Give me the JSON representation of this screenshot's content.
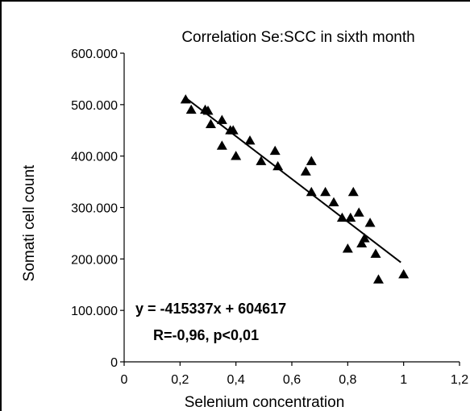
{
  "chart_data": {
    "type": "scatter",
    "title": "Correlation Se:SCC in sixth month",
    "xlabel": "Selenium concentration",
    "ylabel": "Somati cell count",
    "xlim": [
      0,
      1.2
    ],
    "ylim": [
      0,
      600000
    ],
    "x_ticks": [
      "0",
      "0,2",
      "0,4",
      "0,6",
      "0,8",
      "1",
      "1,2"
    ],
    "y_ticks": [
      "0",
      "100.000",
      "200.000",
      "300.000",
      "400.000",
      "500.000",
      "600.000"
    ],
    "marker": "triangle",
    "grid": false,
    "legend": "none",
    "points": [
      [
        0.22,
        510000
      ],
      [
        0.24,
        490000
      ],
      [
        0.29,
        490000
      ],
      [
        0.3,
        488000
      ],
      [
        0.31,
        462000
      ],
      [
        0.35,
        470000
      ],
      [
        0.35,
        420000
      ],
      [
        0.38,
        450000
      ],
      [
        0.39,
        450000
      ],
      [
        0.4,
        400000
      ],
      [
        0.45,
        430000
      ],
      [
        0.49,
        390000
      ],
      [
        0.54,
        410000
      ],
      [
        0.55,
        380000
      ],
      [
        0.65,
        370000
      ],
      [
        0.67,
        390000
      ],
      [
        0.67,
        330000
      ],
      [
        0.72,
        330000
      ],
      [
        0.75,
        310000
      ],
      [
        0.78,
        280000
      ],
      [
        0.8,
        220000
      ],
      [
        0.81,
        280000
      ],
      [
        0.82,
        330000
      ],
      [
        0.84,
        290000
      ],
      [
        0.85,
        230000
      ],
      [
        0.86,
        240000
      ],
      [
        0.88,
        270000
      ],
      [
        0.9,
        210000
      ],
      [
        0.91,
        160000
      ],
      [
        1.0,
        170000
      ]
    ],
    "trendline": {
      "x_range": [
        0.22,
        0.99
      ],
      "equation": "y = -415337x + 604617",
      "stats": "R=-0,96, p<0,01",
      "slope": -415337,
      "intercept": 604617
    }
  }
}
